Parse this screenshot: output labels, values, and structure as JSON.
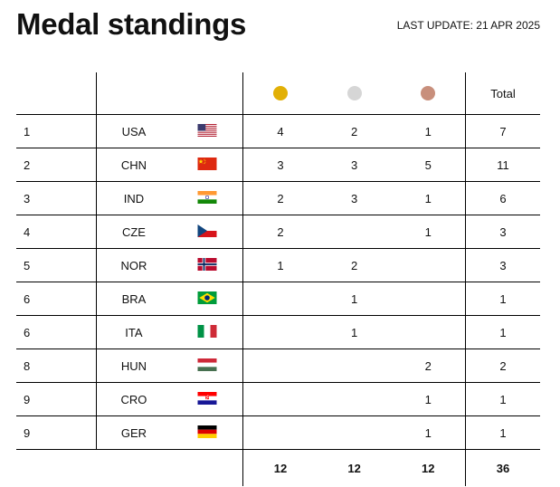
{
  "header": {
    "title": "Medal standings",
    "last_update": "LAST UPDATE: 21 APR 2025"
  },
  "table": {
    "total_label": "Total",
    "medal_colors": {
      "gold": "#e2b006",
      "silver": "#d6d6d6",
      "bronze": "#c88f7c"
    },
    "rows": [
      {
        "rank": "1",
        "code": "USA",
        "flag": "usa-flag-icon",
        "gold": "4",
        "silver": "2",
        "bronze": "1",
        "total": "7"
      },
      {
        "rank": "2",
        "code": "CHN",
        "flag": "chn-flag-icon",
        "gold": "3",
        "silver": "3",
        "bronze": "5",
        "total": "11"
      },
      {
        "rank": "3",
        "code": "IND",
        "flag": "ind-flag-icon",
        "gold": "2",
        "silver": "3",
        "bronze": "1",
        "total": "6"
      },
      {
        "rank": "4",
        "code": "CZE",
        "flag": "cze-flag-icon",
        "gold": "2",
        "silver": "",
        "bronze": "1",
        "total": "3"
      },
      {
        "rank": "5",
        "code": "NOR",
        "flag": "nor-flag-icon",
        "gold": "1",
        "silver": "2",
        "bronze": "",
        "total": "3"
      },
      {
        "rank": "6",
        "code": "BRA",
        "flag": "bra-flag-icon",
        "gold": "",
        "silver": "1",
        "bronze": "",
        "total": "1"
      },
      {
        "rank": "6",
        "code": "ITA",
        "flag": "ita-flag-icon",
        "gold": "",
        "silver": "1",
        "bronze": "",
        "total": "1"
      },
      {
        "rank": "8",
        "code": "HUN",
        "flag": "hun-flag-icon",
        "gold": "",
        "silver": "",
        "bronze": "2",
        "total": "2"
      },
      {
        "rank": "9",
        "code": "CRO",
        "flag": "cro-flag-icon",
        "gold": "",
        "silver": "",
        "bronze": "1",
        "total": "1"
      },
      {
        "rank": "9",
        "code": "GER",
        "flag": "ger-flag-icon",
        "gold": "",
        "silver": "",
        "bronze": "1",
        "total": "1"
      }
    ],
    "totals": {
      "gold": "12",
      "silver": "12",
      "bronze": "12",
      "total": "36"
    }
  }
}
